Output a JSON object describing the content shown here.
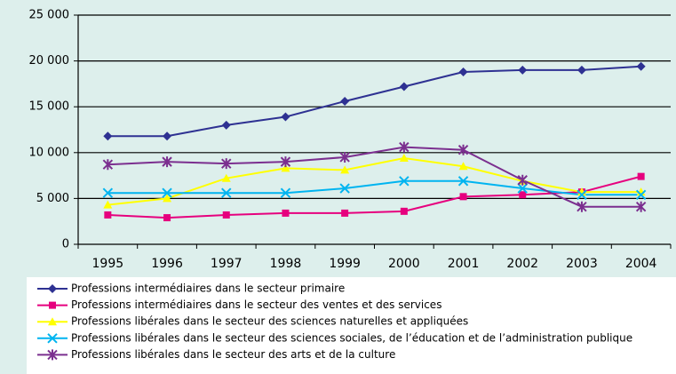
{
  "chart_data": {
    "type": "line",
    "categories": [
      "1995",
      "1996",
      "1997",
      "1998",
      "1999",
      "2000",
      "2001",
      "2002",
      "2003",
      "2004"
    ],
    "series": [
      {
        "name": "Professions intermédiaires dans le secteur primaire",
        "color": "#2e3192",
        "marker": "diamond",
        "values": [
          11800,
          11800,
          13000,
          13900,
          15600,
          17200,
          18800,
          19000,
          19000,
          19400
        ]
      },
      {
        "name": "Professions intermédiaires dans le secteur des ventes et des services",
        "color": "#e6007e",
        "marker": "square",
        "values": [
          3200,
          2900,
          3200,
          3400,
          3400,
          3600,
          5200,
          5400,
          5700,
          7400
        ]
      },
      {
        "name": "Professions libérales dans le secteur des sciences naturelles et appliquées",
        "color": "#ffff00",
        "marker": "triangle",
        "values": [
          4300,
          5000,
          7200,
          8300,
          8100,
          9400,
          8500,
          6900,
          5700,
          5700
        ]
      },
      {
        "name": "Professions libérales dans le secteur des sciences sociales, de l’éducation et de l’administration publique",
        "color": "#00b4f0",
        "marker": "x",
        "values": [
          5600,
          5600,
          5600,
          5600,
          6100,
          6900,
          6900,
          6100,
          5400,
          5400
        ]
      },
      {
        "name": "Professions libérales dans le secteur des arts et de la culture",
        "color": "#7b2f8f",
        "marker": "asterisk",
        "values": [
          8700,
          9000,
          8800,
          9000,
          9500,
          10600,
          10300,
          7000,
          4100,
          4100
        ]
      }
    ],
    "ylim": [
      0,
      25000
    ],
    "yticks": [
      0,
      {
        "value": 5000,
        "label": "5 000"
      },
      {
        "value": 10000,
        "label": "10 000"
      },
      {
        "value": 15000,
        "label": "15 000"
      },
      {
        "value": 20000,
        "label": "20 000"
      },
      {
        "value": 25000,
        "label": "25 000"
      }
    ],
    "grid": true
  }
}
